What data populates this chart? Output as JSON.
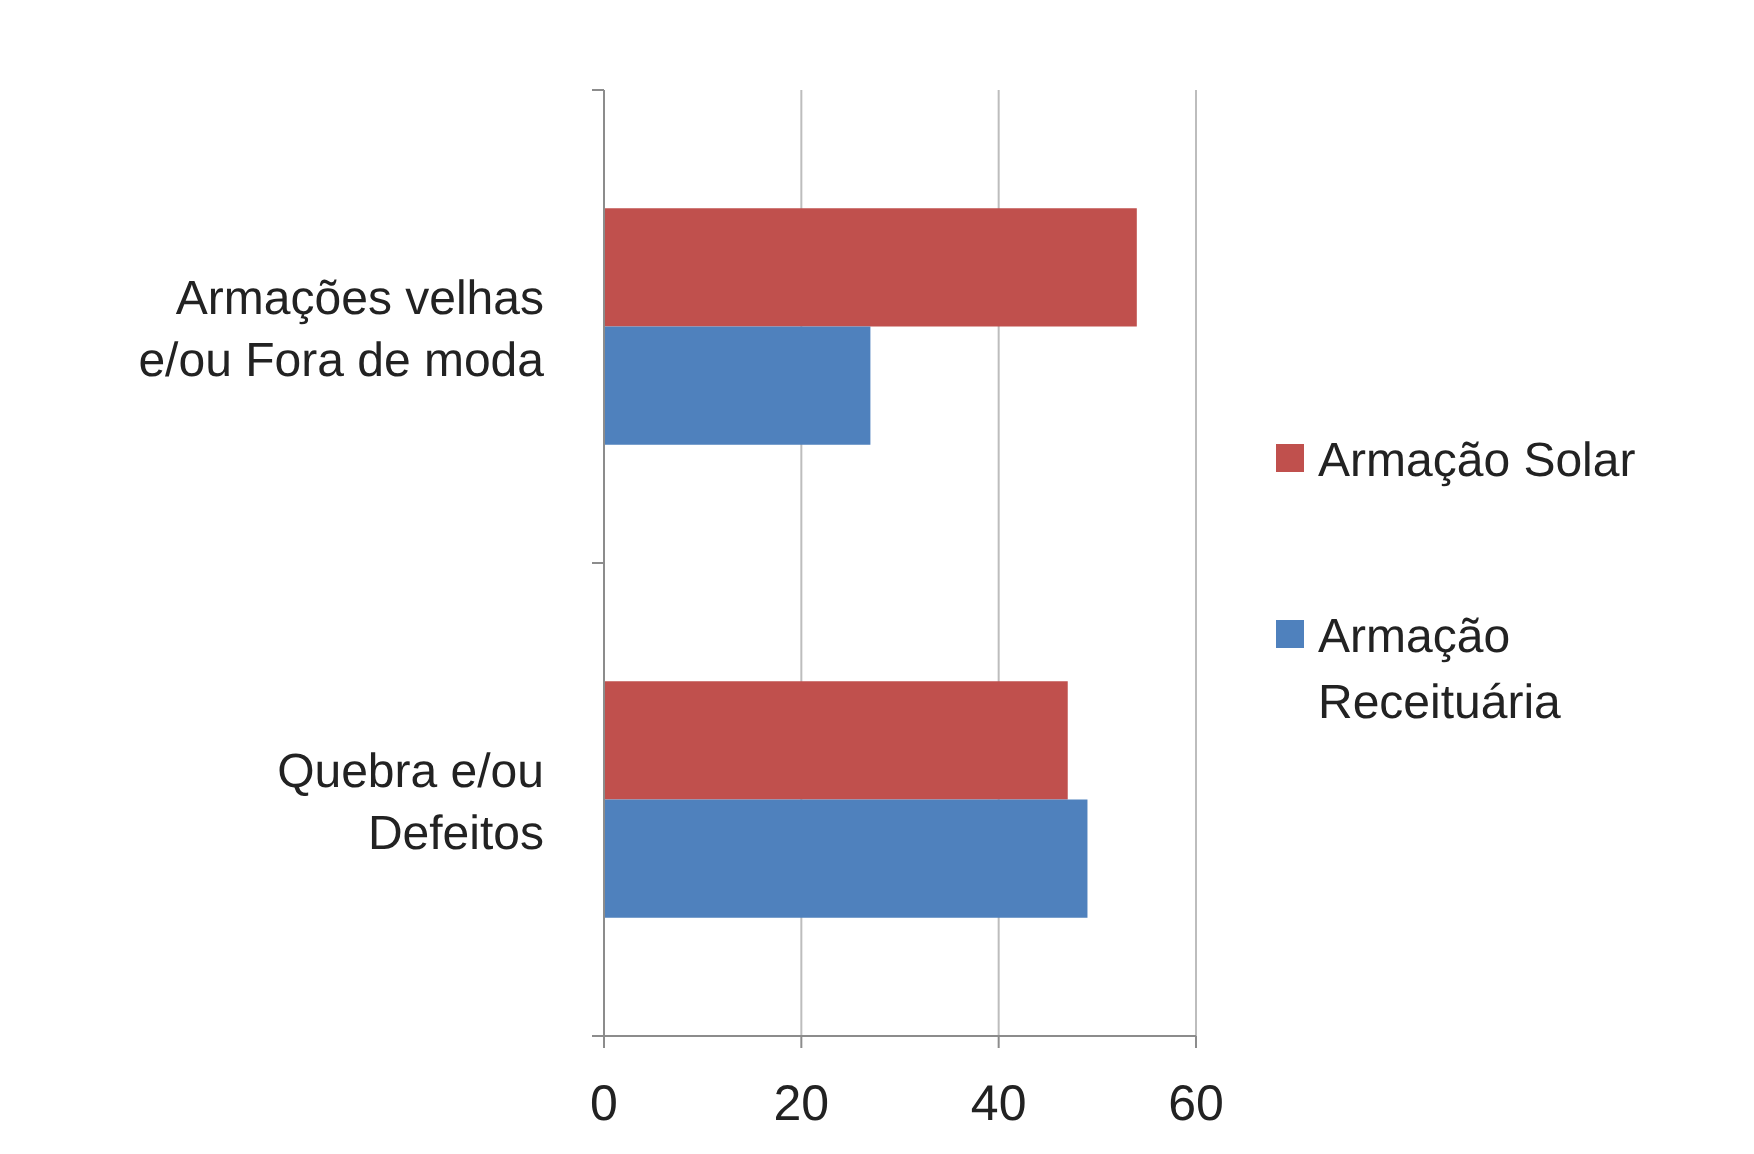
{
  "chart_data": {
    "type": "bar",
    "orientation": "horizontal",
    "categories": [
      "Armações velhas e/ou Fora de moda",
      "Quebra e/ou Defeitos"
    ],
    "series": [
      {
        "name": "Armação Solar",
        "color": "#c0504d",
        "values": [
          54,
          47
        ]
      },
      {
        "name": "Armação Receituária",
        "color": "#4f81bd",
        "values": [
          27,
          49
        ]
      }
    ],
    "xlim": [
      0,
      60
    ],
    "xticks": [
      0,
      20,
      40,
      60
    ],
    "grid": "x",
    "legend": "right"
  }
}
